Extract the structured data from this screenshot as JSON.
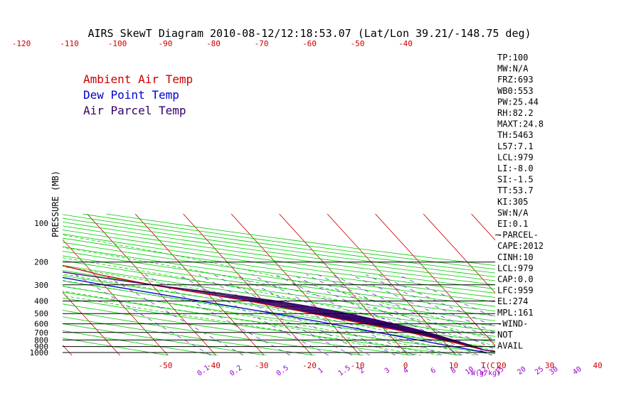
{
  "chart_data": {
    "type": "line",
    "title": "AIRS SkewT Diagram 2010-08-12/12:18:53.07 (Lat/Lon 39.21/-148.75 deg)",
    "ylabel": "PRESSURE (MB)",
    "xlabel": "T(C)",
    "mixing_ratio_label": "W(g/kg)",
    "pressure_ticks": [
      100,
      200,
      300,
      400,
      500,
      600,
      700,
      800,
      900,
      1000
    ],
    "temp_ticks_bottom": [
      -50,
      -40,
      -30,
      -20,
      -10,
      0,
      10,
      20,
      30,
      40
    ],
    "temp_ticks_top": [
      -120,
      -110,
      -100,
      -90,
      -80,
      -70,
      -60,
      -50,
      -40
    ],
    "mixing_ratio_ticks": [
      "0.1",
      "0.2",
      "0.5",
      "1",
      "1.5",
      "2",
      "3",
      "4",
      "6",
      "8",
      "10",
      "12",
      "15",
      "20",
      "25",
      "30",
      "40"
    ],
    "mixing_ratio_values": [
      0.1,
      0.2,
      0.5,
      1,
      1.5,
      2,
      3,
      4,
      6,
      8,
      10,
      12,
      15,
      20,
      25,
      30,
      40
    ],
    "isotherms": [
      -150,
      -140,
      -130,
      -120,
      -110,
      -100,
      -90,
      -80,
      -70,
      -60,
      -50,
      -40,
      -30,
      -20,
      -10,
      0,
      10,
      20,
      30,
      40
    ],
    "dry_adiabat_thetas": [
      220,
      230,
      240,
      250,
      260,
      270,
      280,
      290,
      300,
      310,
      320,
      330,
      340,
      350,
      360,
      370,
      380,
      390,
      400,
      410,
      420,
      430,
      440,
      450,
      460,
      470,
      480
    ],
    "moist_adiabat_thetas": [
      0,
      4,
      8,
      12,
      16,
      20,
      24,
      28,
      32
    ],
    "series": [
      {
        "name": "Ambient Air Temp",
        "color": "#cc0000",
        "points": [
          {
            "p": 1000,
            "t": 20.5
          },
          {
            "p": 975,
            "t": 18.5
          },
          {
            "p": 950,
            "t": 16.5
          },
          {
            "p": 925,
            "t": 15.5
          },
          {
            "p": 900,
            "t": 14.5
          },
          {
            "p": 850,
            "t": 12.5
          },
          {
            "p": 800,
            "t": 10
          },
          {
            "p": 750,
            "t": 7.5
          },
          {
            "p": 700,
            "t": 4.5
          },
          {
            "p": 650,
            "t": 1
          },
          {
            "p": 600,
            "t": -3
          },
          {
            "p": 550,
            "t": -7.5
          },
          {
            "p": 500,
            "t": -12
          },
          {
            "p": 450,
            "t": -17
          },
          {
            "p": 400,
            "t": -23
          },
          {
            "p": 350,
            "t": -31
          },
          {
            "p": 300,
            "t": -40
          },
          {
            "p": 250,
            "t": -49
          },
          {
            "p": 200,
            "t": -57
          },
          {
            "p": 175,
            "t": -61
          },
          {
            "p": 150,
            "t": -66
          },
          {
            "p": 125,
            "t": -72
          },
          {
            "p": 100,
            "t": -79
          }
        ]
      },
      {
        "name": "Dew Point Temp",
        "color": "#0000cc",
        "points": [
          {
            "p": 1000,
            "t": 17
          },
          {
            "p": 975,
            "t": 15.5
          },
          {
            "p": 950,
            "t": 14
          },
          {
            "p": 900,
            "t": 11
          },
          {
            "p": 850,
            "t": 8
          },
          {
            "p": 800,
            "t": 5
          },
          {
            "p": 700,
            "t": -2
          },
          {
            "p": 600,
            "t": -10
          },
          {
            "p": 500,
            "t": -20
          },
          {
            "p": 450,
            "t": -26
          },
          {
            "p": 400,
            "t": -33
          },
          {
            "p": 300,
            "t": -50
          },
          {
            "p": 250,
            "t": -60
          },
          {
            "p": 200,
            "t": -71
          },
          {
            "p": 175,
            "t": -77
          },
          {
            "p": 150,
            "t": -85
          },
          {
            "p": 125,
            "t": -90
          },
          {
            "p": 100,
            "t": -97
          }
        ]
      },
      {
        "name": "Air Parcel Temp",
        "color": "#330066",
        "points": [
          {
            "p": 1000,
            "t": 20.5
          },
          {
            "p": 979,
            "t": 18.3
          },
          {
            "p": 959,
            "t": 17
          },
          {
            "p": 900,
            "t": 15.5
          },
          {
            "p": 850,
            "t": 14
          },
          {
            "p": 800,
            "t": 12.3
          },
          {
            "p": 750,
            "t": 10.5
          },
          {
            "p": 700,
            "t": 8.5
          },
          {
            "p": 650,
            "t": 6
          },
          {
            "p": 600,
            "t": 3
          },
          {
            "p": 550,
            "t": -0.5
          },
          {
            "p": 500,
            "t": -4.5
          },
          {
            "p": 450,
            "t": -10
          },
          {
            "p": 400,
            "t": -17
          },
          {
            "p": 350,
            "t": -27
          },
          {
            "p": 300,
            "t": -40
          },
          {
            "p": 250,
            "t": -53
          },
          {
            "p": 200,
            "t": -68
          },
          {
            "p": 150,
            "t": -86
          },
          {
            "p": 125,
            "t": -98
          },
          {
            "p": 100,
            "t": -112
          }
        ]
      }
    ],
    "stats": [
      "TP:100",
      "MW:N/A",
      "FRZ:693",
      "WB0:553",
      "PW:25.44",
      "RH:82.2",
      "MAXT:24.8",
      "TH:5463",
      "L57:7.1",
      "LCL:979",
      "LI:-8.0",
      "SI:-1.5",
      "TT:53.7",
      "KI:305",
      "SW:N/A",
      "EI:0.1",
      "-PARCEL-",
      "CAPE:2012",
      "CINH:10",
      "LCL:979",
      "CAP:0.0",
      "LFC:959",
      "EL:274",
      "MPL:161",
      "-WIND-",
      "NOT",
      "AVAIL"
    ]
  },
  "colors": {
    "isotherm": "#cc0000",
    "dry_adiabat": "#00cc00",
    "moist_adiabat": "#00cc00",
    "mixing_ratio": "#6633cc",
    "isobar": "#000000",
    "hatch": "#330066"
  }
}
